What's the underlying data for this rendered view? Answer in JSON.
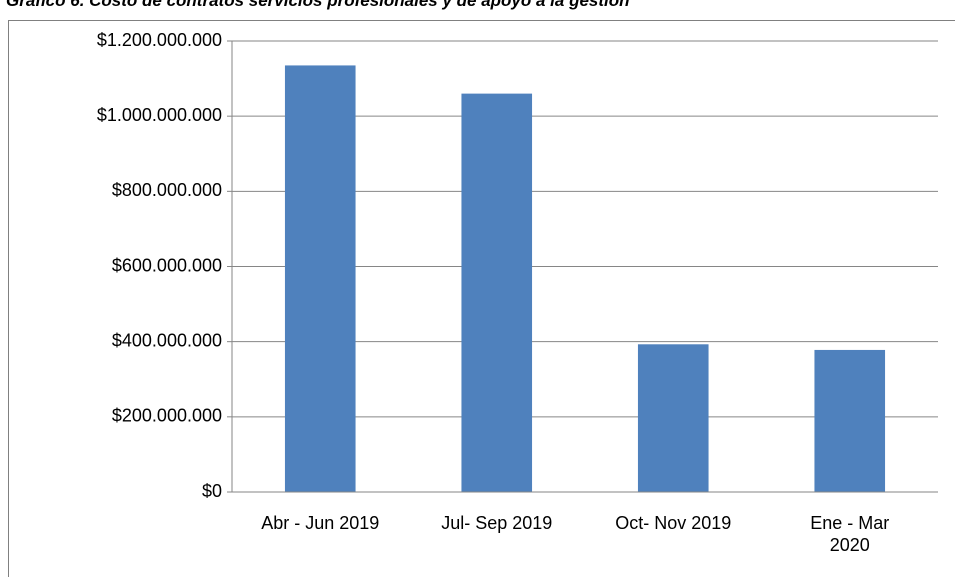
{
  "chart_data": {
    "type": "bar",
    "title": "Gráfico 6. Costo de contratos servicios profesionales y de apoyo a la gestión",
    "categories": [
      "Abr - Jun 2019",
      "Jul- Sep 2019",
      "Oct- Nov 2019",
      "Ene - Mar 2020"
    ],
    "values": [
      1135000000,
      1060000000,
      393000000,
      378000000
    ],
    "color": "#4f81bd",
    "ylim": [
      0,
      1200000000
    ],
    "yticks": [
      {
        "value": 0,
        "label": "$0"
      },
      {
        "value": 200000000,
        "label": "$200.000.000"
      },
      {
        "value": 400000000,
        "label": "$400.000.000"
      },
      {
        "value": 600000000,
        "label": "$600.000.000"
      },
      {
        "value": 800000000,
        "label": "$800.000.000"
      },
      {
        "value": 1000000000,
        "label": "$1.000.000.000"
      },
      {
        "value": 1200000000,
        "label": "$1.200.000.000"
      }
    ],
    "grid": true
  }
}
